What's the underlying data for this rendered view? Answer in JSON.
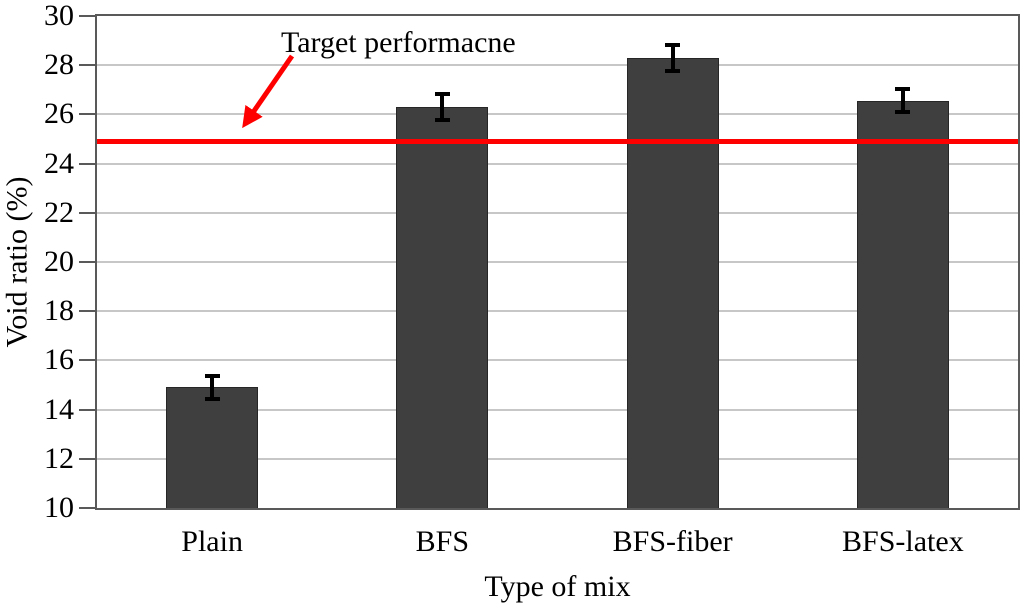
{
  "chart_data": {
    "type": "bar",
    "title": "",
    "categories": [
      "Plain",
      "BFS",
      "BFS-fiber",
      "BFS-latex"
    ],
    "series": [
      {
        "name": "Void ratio",
        "values": [
          14.9,
          26.3,
          28.3,
          26.55
        ],
        "errors": [
          0.55,
          0.6,
          0.6,
          0.55
        ]
      }
    ],
    "xlabel": "Type of mix",
    "ylabel": "Void ratio (%)",
    "ylim": [
      10,
      30
    ],
    "yticks": [
      10,
      12,
      14,
      16,
      18,
      20,
      22,
      24,
      26,
      28,
      30
    ],
    "grid": "horizontal",
    "legend_position": "none",
    "target_line": {
      "value": 24.9,
      "label": "Target performacne",
      "color": "#FF0000"
    },
    "colors": {
      "bar_fill": "#3F3F3F",
      "bar_border": "#262626",
      "error_bar": "#000000",
      "gridline": "#C7C7C7",
      "axis_frame": "#595959",
      "text": "#000000",
      "background": "#FFFFFF"
    }
  }
}
